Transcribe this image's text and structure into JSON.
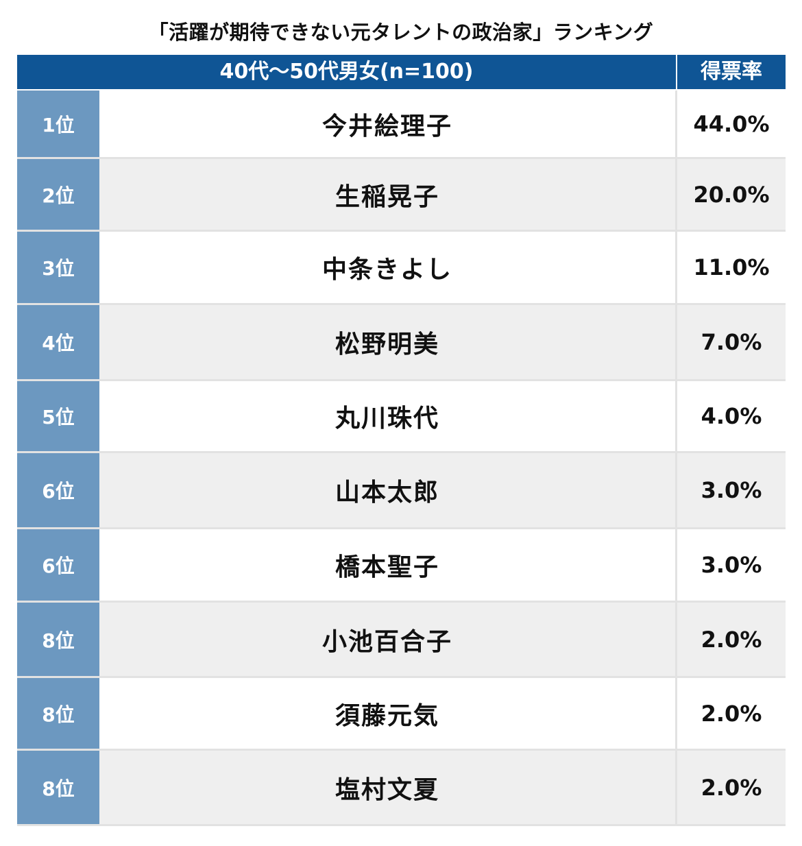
{
  "title": "「活躍が期待できない元タレントの政治家」ランキング",
  "header": {
    "group_label": "40代〜50代男女(n=100)",
    "rate_label": "得票率"
  },
  "rows": [
    {
      "rank": "1位",
      "name": "今井絵理子",
      "rate": "44.0%"
    },
    {
      "rank": "2位",
      "name": "生稲晃子",
      "rate": "20.0%"
    },
    {
      "rank": "3位",
      "name": "中条きよし",
      "rate": "11.0%"
    },
    {
      "rank": "4位",
      "name": "松野明美",
      "rate": "7.0%"
    },
    {
      "rank": "5位",
      "name": "丸川珠代",
      "rate": "4.0%"
    },
    {
      "rank": "6位",
      "name": "山本太郎",
      "rate": "3.0%"
    },
    {
      "rank": "6位",
      "name": "橋本聖子",
      "rate": "3.0%"
    },
    {
      "rank": "8位",
      "name": "小池百合子",
      "rate": "2.0%"
    },
    {
      "rank": "8位",
      "name": "須藤元気",
      "rate": "2.0%"
    },
    {
      "rank": "8位",
      "name": "塩村文夏",
      "rate": "2.0%"
    }
  ],
  "colors": {
    "header_bg": "#0f5595",
    "rank_bg": "#6c98c0",
    "row_alt_bg": "#efefef"
  }
}
